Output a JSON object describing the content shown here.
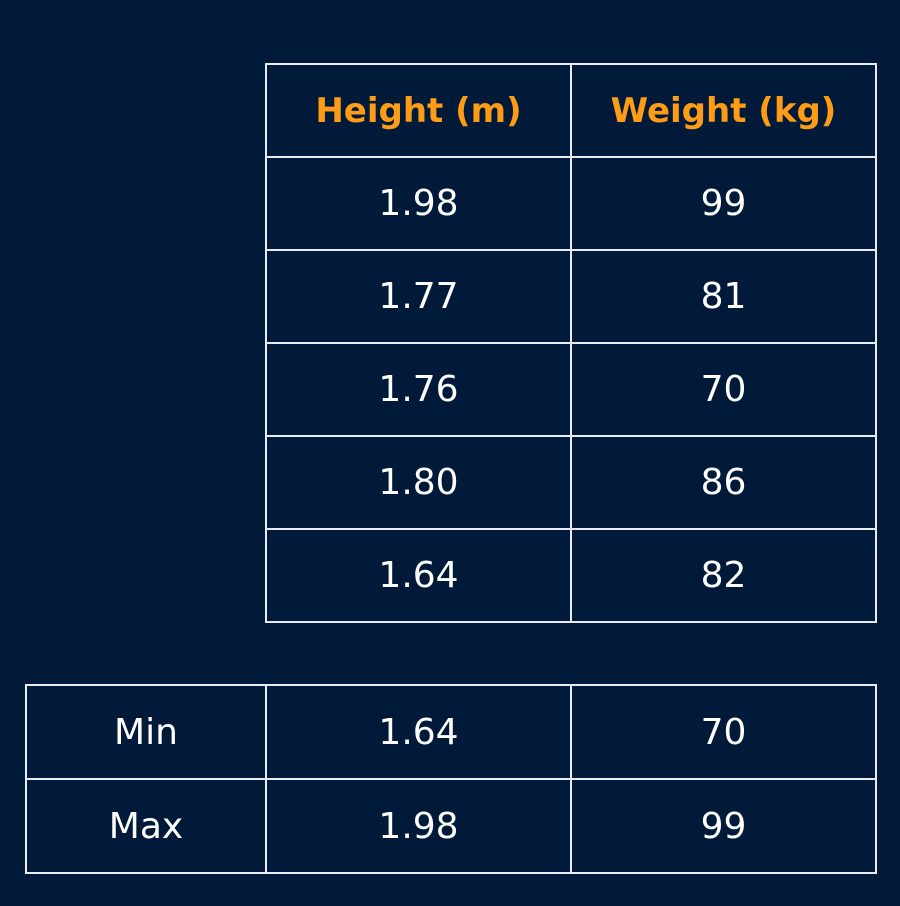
{
  "data_table": {
    "headers": [
      "Height (m)",
      "Weight (kg)"
    ],
    "rows": [
      [
        "1.98",
        "99"
      ],
      [
        "1.77",
        "81"
      ],
      [
        "1.76",
        "70"
      ],
      [
        "1.80",
        "86"
      ],
      [
        "1.64",
        "82"
      ]
    ]
  },
  "summary_table": {
    "rows": [
      [
        "Min",
        "1.64",
        "70"
      ],
      [
        "Max",
        "1.98",
        "99"
      ]
    ]
  },
  "colors": {
    "background": "#011a39",
    "header_text": "#ff9c16",
    "cell_text": "#ffffff",
    "border": "#e8ecf2"
  }
}
